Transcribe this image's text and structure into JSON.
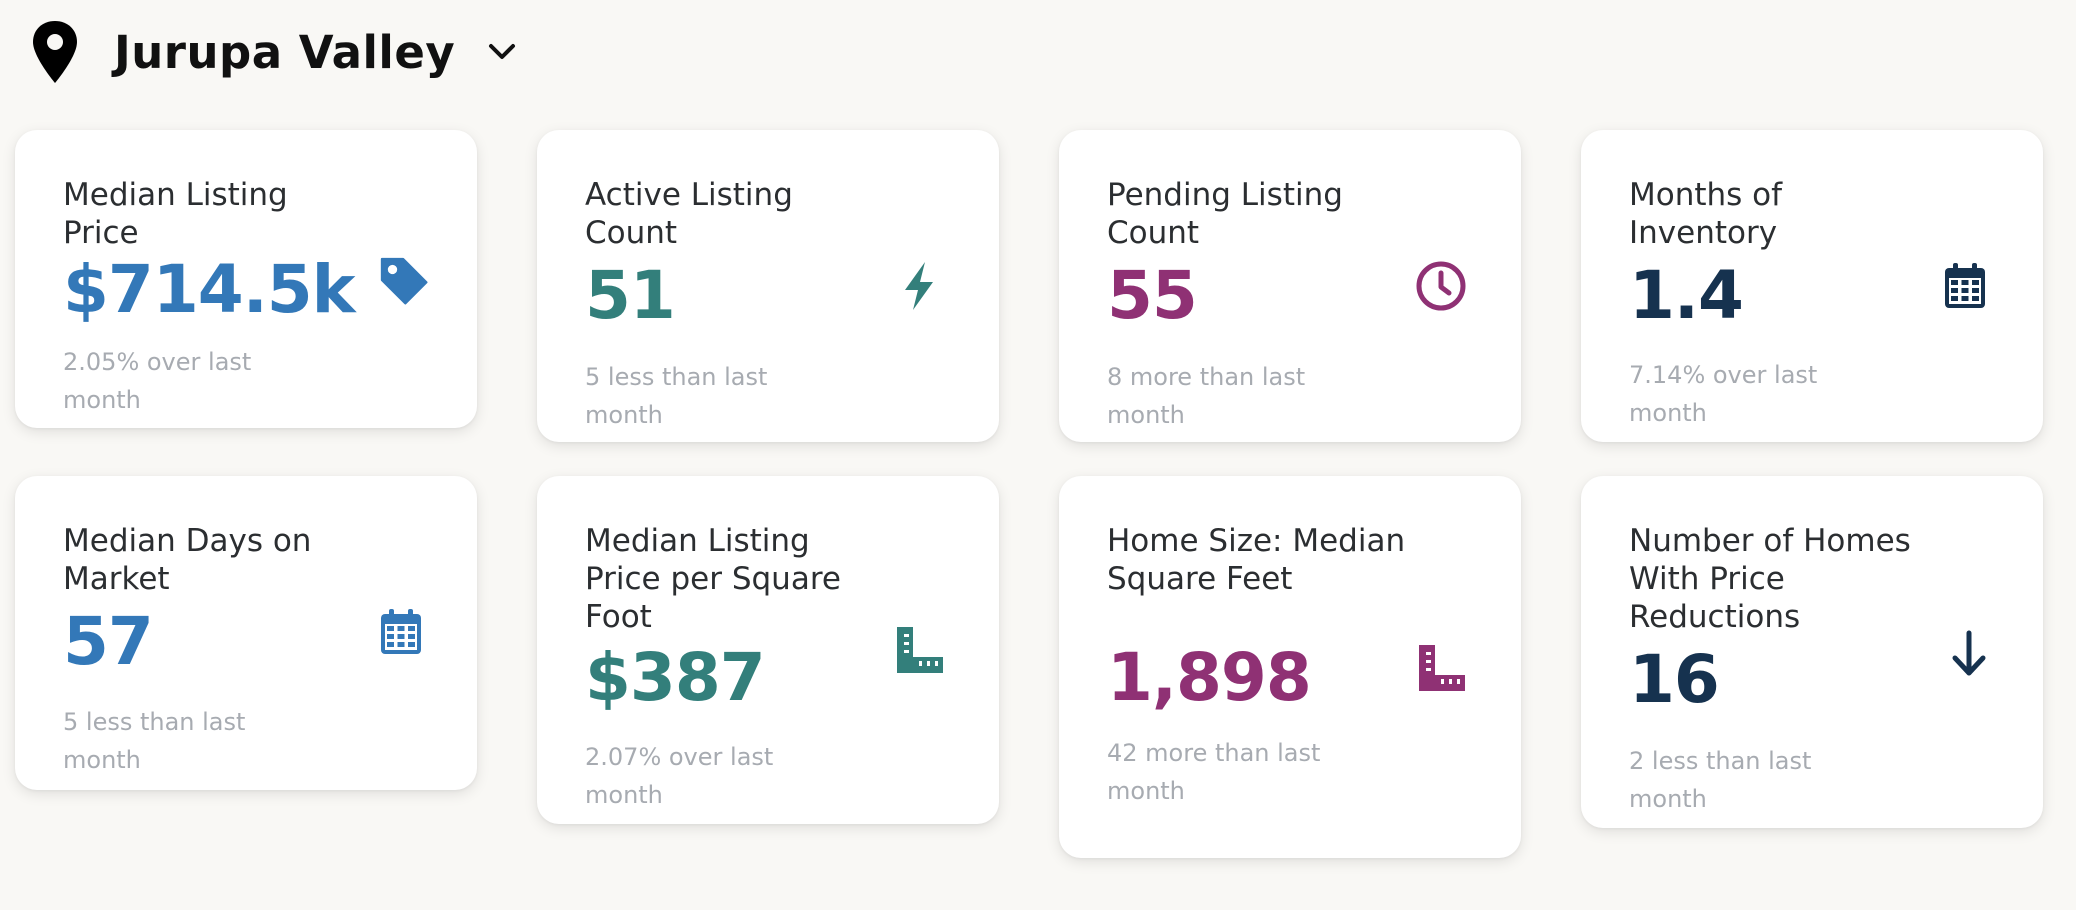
{
  "location": {
    "name": "Jurupa Valley"
  },
  "icons": {
    "location": "map-pin-icon",
    "dropdown": "chevron-down-icon"
  },
  "cards": [
    {
      "title": "Median Listing Price",
      "value": "$714.5k",
      "sub": "2.05% over last month",
      "icon": "tag-icon",
      "color": "#3378b8"
    },
    {
      "title": "Active Listing Count",
      "value": "51",
      "sub": "5 less than last month",
      "icon": "bolt-icon",
      "color": "#337f7b"
    },
    {
      "title": "Pending Listing Count",
      "value": "55",
      "sub": "8 more than last month",
      "icon": "clock-icon",
      "color": "#8f3174"
    },
    {
      "title": "Months of Inventory",
      "value": "1.4",
      "sub": "7.14% over last month",
      "icon": "calendar-icon",
      "color": "#16324f"
    },
    {
      "title": "Median Days on Market",
      "value": "57",
      "sub": "5 less than last month",
      "icon": "calendar-icon",
      "color": "#3378b8"
    },
    {
      "title": "Median Listing Price per Square Foot",
      "value": "$387",
      "sub": "2.07% over last month",
      "icon": "ruler-icon",
      "color": "#337f7b"
    },
    {
      "title": "Home Size: Median Square Feet",
      "value": "1,898",
      "sub": "42 more than last month",
      "icon": "ruler-icon",
      "color": "#8f3174"
    },
    {
      "title": "Number of Homes With Price Reductions",
      "value": "16",
      "sub": "2 less than last month",
      "icon": "arrow-down-icon",
      "color": "#16324f"
    }
  ]
}
